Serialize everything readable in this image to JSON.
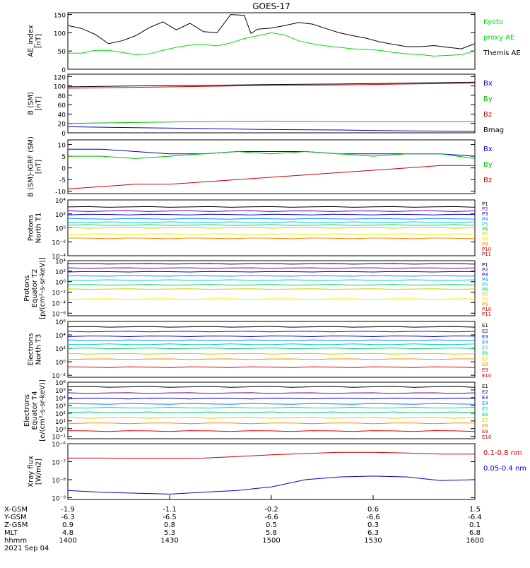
{
  "title": "GOES-17",
  "chart_data": [
    {
      "type": "line",
      "ylabel": [
        "AE_index",
        "[nT]"
      ],
      "ylim": [
        0,
        155
      ],
      "scale": "linear",
      "ticks": [
        0,
        50,
        100,
        150
      ],
      "tick_labels": [
        "0",
        "50",
        "100",
        "150"
      ],
      "legend_side": "right",
      "legend": [
        {
          "text": "Kyoto",
          "color": "#00dd00"
        },
        {
          "text": "proxy AE",
          "color": "#00dd00"
        },
        {
          "text": "Themis AE",
          "color": "#000000"
        }
      ],
      "series": [
        {
          "color": "#000000",
          "x": [
            0,
            4,
            8,
            12,
            16,
            20,
            24,
            28,
            32,
            36,
            40,
            44,
            48,
            52,
            54,
            56,
            60,
            64,
            68,
            72,
            76,
            80,
            84,
            88,
            92,
            96,
            100,
            104,
            108,
            112,
            116,
            120
          ],
          "y": [
            120,
            112,
            96,
            70,
            78,
            92,
            114,
            130,
            108,
            126,
            103,
            100,
            150,
            148,
            98,
            110,
            113,
            120,
            128,
            124,
            112,
            100,
            92,
            85,
            75,
            68,
            62,
            62,
            65,
            60,
            56,
            70
          ]
        },
        {
          "color": "#00dd00",
          "x": [
            0,
            4,
            8,
            12,
            16,
            20,
            24,
            28,
            32,
            36,
            40,
            44,
            48,
            52,
            56,
            60,
            64,
            68,
            72,
            76,
            80,
            84,
            88,
            92,
            96,
            100,
            104,
            108,
            112,
            116,
            120
          ],
          "y": [
            44,
            44,
            52,
            52,
            46,
            40,
            42,
            52,
            60,
            66,
            68,
            64,
            72,
            84,
            92,
            100,
            94,
            78,
            70,
            64,
            60,
            56,
            54,
            52,
            46,
            42,
            40,
            36,
            38,
            40,
            50
          ]
        }
      ]
    },
    {
      "type": "line",
      "ylabel": [
        "B (SM)",
        "[nT]"
      ],
      "ylim": [
        0,
        125
      ],
      "scale": "linear",
      "ticks": [
        0,
        20,
        40,
        60,
        80,
        100,
        120
      ],
      "tick_labels": [
        "0",
        "20",
        "40",
        "60",
        "80",
        "100",
        "120"
      ],
      "legend_side": "right",
      "legend": [
        {
          "text": "Bx",
          "color": "#0000cc"
        },
        {
          "text": "By",
          "color": "#00bb00"
        },
        {
          "text": "Bz",
          "color": "#cc0000"
        },
        {
          "text": "Bmag",
          "color": "#000000"
        }
      ],
      "series": [
        {
          "color": "#cc0000",
          "x": [
            0,
            20,
            40,
            60,
            80,
            100,
            120
          ],
          "y": [
            95,
            97,
            99,
            101,
            102,
            104,
            106
          ]
        },
        {
          "color": "#000000",
          "x": [
            0,
            20,
            40,
            60,
            80,
            100,
            120
          ],
          "y": [
            98,
            100,
            101,
            103,
            104,
            106,
            108
          ]
        },
        {
          "color": "#00bb00",
          "x": [
            0,
            20,
            40,
            60,
            80,
            100,
            120
          ],
          "y": [
            20,
            22,
            24,
            25,
            24,
            24,
            24
          ]
        },
        {
          "color": "#0000cc",
          "x": [
            0,
            20,
            40,
            60,
            80,
            100,
            120
          ],
          "y": [
            13,
            11,
            9,
            7,
            6,
            4,
            3
          ]
        }
      ]
    },
    {
      "type": "line",
      "ylabel": [
        "B (SM)-IGRF (SM)",
        "[nT]"
      ],
      "ylim": [
        -11,
        12
      ],
      "scale": "linear",
      "ticks": [
        -10,
        -5,
        0,
        5,
        10
      ],
      "tick_labels": [
        "-10",
        "-5",
        "0",
        "5",
        "10"
      ],
      "legend_side": "right",
      "legend": [
        {
          "text": "Bx",
          "color": "#0000cc"
        },
        {
          "text": "By",
          "color": "#00bb00"
        },
        {
          "text": "Bz",
          "color": "#cc0000"
        }
      ],
      "series": [
        {
          "color": "#0000cc",
          "x": [
            0,
            10,
            20,
            30,
            40,
            50,
            60,
            70,
            80,
            90,
            100,
            110,
            120
          ],
          "y": [
            8,
            8,
            7,
            6,
            6,
            7,
            7,
            7,
            6,
            6,
            6,
            6,
            5
          ]
        },
        {
          "color": "#00bb00",
          "x": [
            0,
            10,
            20,
            30,
            40,
            50,
            60,
            70,
            80,
            90,
            100,
            110,
            120
          ],
          "y": [
            5,
            5,
            4,
            5,
            6,
            7,
            6,
            7,
            6,
            5,
            6,
            6,
            4
          ]
        },
        {
          "color": "#cc0000",
          "x": [
            0,
            10,
            20,
            30,
            40,
            50,
            60,
            70,
            80,
            90,
            100,
            110,
            120
          ],
          "y": [
            -9,
            -8,
            -7,
            -7,
            -6,
            -5,
            -4,
            -3,
            -2,
            -1,
            0,
            1,
            1
          ]
        }
      ]
    },
    {
      "type": "line",
      "ylabel": [
        "Protons",
        "North T1"
      ],
      "ylim": [
        -4,
        4
      ],
      "scale": "log",
      "ticks": [
        -4,
        -2,
        0,
        2,
        4
      ],
      "tick_labels": [
        "10⁻⁴",
        "10⁻²",
        "10⁰",
        "10²",
        "10⁴"
      ],
      "legend_side": "right",
      "legend": [
        {
          "text": "P1",
          "color": "#000000"
        },
        {
          "text": "P2",
          "color": "#660088"
        },
        {
          "text": "P3",
          "color": "#0000cc"
        },
        {
          "text": "P4",
          "color": "#0088ff"
        },
        {
          "text": "P5",
          "color": "#00cccc"
        },
        {
          "text": "P6",
          "color": "#00cc66"
        },
        {
          "text": "P7",
          "color": "#cccc00"
        },
        {
          "text": "P8",
          "color": "#eeee00"
        },
        {
          "text": "P9",
          "color": "#ff8800"
        },
        {
          "text": "P10",
          "color": "#dd0000"
        },
        {
          "text": "P11",
          "color": "#aa0000"
        }
      ],
      "flat": [
        3.0,
        2.4,
        1.9,
        1.3,
        0.8,
        0.4,
        0.0,
        -0.9,
        -1.5
      ]
    },
    {
      "type": "line",
      "ylabel": [
        "Protons",
        "Equator T2",
        "[p/(cm²-s-sr-keV)]"
      ],
      "ylim": [
        -6.5,
        4
      ],
      "scale": "log",
      "ticks": [
        -6,
        -4,
        -2,
        0,
        2,
        4
      ],
      "tick_labels": [
        "10⁻⁶",
        "10⁻⁴",
        "10⁻²",
        "10⁰",
        "10²",
        "10⁴"
      ],
      "legend_side": "right",
      "legend": [
        {
          "text": "P1",
          "color": "#000000"
        },
        {
          "text": "P2",
          "color": "#660088"
        },
        {
          "text": "P3",
          "color": "#0000cc"
        },
        {
          "text": "P4",
          "color": "#0088ff"
        },
        {
          "text": "P5",
          "color": "#00cccc"
        },
        {
          "text": "P6",
          "color": "#00cc66"
        },
        {
          "text": "P7",
          "color": "#cccc00"
        },
        {
          "text": "P8",
          "color": "#eeee00"
        },
        {
          "text": "P9",
          "color": "#ff8800"
        },
        {
          "text": "P10",
          "color": "#dd0000"
        },
        {
          "text": "P11",
          "color": "#aa0000"
        }
      ],
      "flat": [
        3.4,
        2.6,
        1.9,
        1.1,
        0.3,
        -0.6,
        -1.4,
        -3.3
      ]
    },
    {
      "type": "line",
      "ylabel": [
        "Electrons",
        "North T3"
      ],
      "ylim": [
        -2.3,
        6
      ],
      "scale": "log",
      "ticks": [
        -2,
        0,
        2,
        4,
        6
      ],
      "tick_labels": [
        "10⁻²",
        "10⁰",
        "10²",
        "10⁴",
        "10⁶"
      ],
      "legend_side": "right",
      "legend": [
        {
          "text": "E1",
          "color": "#000000"
        },
        {
          "text": "E2",
          "color": "#660088"
        },
        {
          "text": "E3",
          "color": "#0000cc"
        },
        {
          "text": "E4",
          "color": "#0088ff"
        },
        {
          "text": "E5",
          "color": "#00cccc"
        },
        {
          "text": "E6",
          "color": "#00cc66"
        },
        {
          "text": "E7",
          "color": "#cccc00"
        },
        {
          "text": "E8",
          "color": "#ff8800"
        },
        {
          "text": "E9",
          "color": "#dd0000"
        },
        {
          "text": "E10",
          "color": "#aa0000"
        }
      ],
      "flat": [
        5.2,
        4.5,
        3.8,
        3.2,
        2.6,
        2.0,
        1.2,
        0.4,
        -0.8
      ]
    },
    {
      "type": "line",
      "ylabel": [
        "Electrons",
        "Equator T4",
        "[e/(cm²-s-sr-keV)]"
      ],
      "ylim": [
        -1.3,
        6
      ],
      "scale": "log",
      "ticks": [
        -1,
        0,
        1,
        2,
        3,
        4,
        5,
        6
      ],
      "tick_labels": [
        "10⁻¹",
        "10⁰",
        "10¹",
        "10²",
        "10³",
        "10⁴",
        "10⁵",
        "10⁶"
      ],
      "legend_side": "right",
      "legend": [
        {
          "text": "E1",
          "color": "#000000"
        },
        {
          "text": "E2",
          "color": "#660088"
        },
        {
          "text": "E3",
          "color": "#0000cc"
        },
        {
          "text": "E4",
          "color": "#0088ff"
        },
        {
          "text": "E5",
          "color": "#00cccc"
        },
        {
          "text": "E6",
          "color": "#00cc66"
        },
        {
          "text": "E7",
          "color": "#cccc00"
        },
        {
          "text": "E8",
          "color": "#ff8800"
        },
        {
          "text": "E9",
          "color": "#dd0000"
        },
        {
          "text": "E10",
          "color": "#aa0000"
        }
      ],
      "flat": [
        5.4,
        4.6,
        3.9,
        3.2,
        2.7,
        2.1,
        1.4,
        0.7,
        -0.3
      ]
    },
    {
      "type": "line",
      "ylabel": [
        "Xray flux",
        "[W/m2]"
      ],
      "ylim": [
        -9.1,
        -6
      ],
      "scale": "log",
      "ticks": [
        -9,
        -8,
        -7,
        -6
      ],
      "tick_labels": [
        "10⁻⁹",
        "10⁻⁸",
        "10⁻⁷",
        "10⁻⁶"
      ],
      "legend_side": "right",
      "legend": [
        {
          "text": "0.1-0.8 nm",
          "color": "#cc0000"
        },
        {
          "text": "0.05-0.4 nm",
          "color": "#0000cc"
        }
      ],
      "series": [
        {
          "color": "#cc0000",
          "x": [
            0,
            10,
            20,
            30,
            40,
            50,
            60,
            70,
            80,
            90,
            100,
            110,
            120
          ],
          "y": [
            -6.8,
            -6.8,
            -6.82,
            -6.82,
            -6.8,
            -6.72,
            -6.62,
            -6.55,
            -6.48,
            -6.48,
            -6.52,
            -6.58,
            -6.58
          ]
        },
        {
          "color": "#0000cc",
          "x": [
            0,
            10,
            20,
            30,
            40,
            50,
            60,
            70,
            80,
            90,
            100,
            110,
            120
          ],
          "y": [
            -8.6,
            -8.7,
            -8.75,
            -8.8,
            -8.7,
            -8.6,
            -8.4,
            -8.0,
            -7.85,
            -7.8,
            -7.85,
            -8.05,
            -8.0
          ]
        }
      ]
    }
  ],
  "xaxis": {
    "tick_x": [
      0,
      30,
      60,
      90,
      120
    ],
    "rows": [
      {
        "label": "X-GSM",
        "values": [
          "-1.9",
          "-1.1",
          "-0.2",
          "0.6",
          "1.5"
        ]
      },
      {
        "label": "Y-GSM",
        "values": [
          "-6.3",
          "-6.5",
          "-6.6",
          "-6.6",
          "-6.4"
        ]
      },
      {
        "label": "Z-GSM",
        "values": [
          "0.9",
          "0.8",
          "0.5",
          "0.3",
          "0.1"
        ]
      },
      {
        "label": "MLT",
        "values": [
          "4.8",
          "5.3",
          "5.8",
          "6.3",
          "6.8"
        ]
      },
      {
        "label": "hhmm",
        "values": [
          "1400",
          "1430",
          "1500",
          "1530",
          "1600"
        ]
      }
    ],
    "date": "2021 Sep 04"
  }
}
